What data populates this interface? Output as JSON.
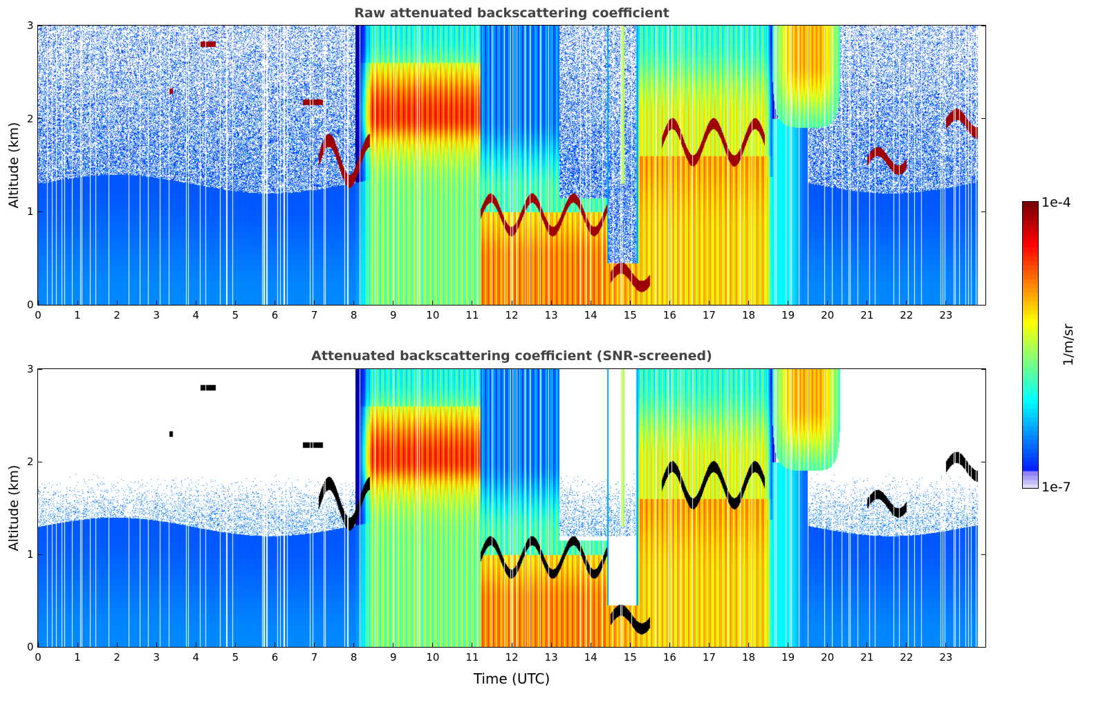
{
  "chart_data": [
    {
      "type": "heatmap",
      "title": "Raw attenuated backscattering coefficient",
      "xlabel": "",
      "ylabel": "Altitude (km)",
      "xlim": [
        0,
        24
      ],
      "ylim": [
        0,
        3
      ],
      "x_ticks": [
        "0",
        "1",
        "2",
        "3",
        "4",
        "5",
        "6",
        "7",
        "8",
        "9",
        "10",
        "11",
        "12",
        "13",
        "14",
        "15",
        "16",
        "17",
        "18",
        "19",
        "20",
        "21",
        "22",
        "23"
      ],
      "y_ticks": [
        "0",
        "1",
        "2",
        "3"
      ],
      "screened": false,
      "features": [
        {
          "desc": "boundary layer",
          "x_range": [
            0,
            24
          ],
          "top_altitude_km": 1.3
        },
        {
          "desc": "cloud layer",
          "x_range": [
            7.1,
            8.4
          ],
          "altitude_km": 1.6
        },
        {
          "desc": "cloud layer",
          "x_range": [
            11.2,
            14.4
          ],
          "altitude_km": 0.95
        },
        {
          "desc": "cloud layer",
          "x_range": [
            15.2,
            18.5
          ],
          "altitude_km": 1.7
        },
        {
          "desc": "cloud layer",
          "x_range": [
            23.0,
            23.8
          ],
          "altitude_km": 1.95
        }
      ]
    },
    {
      "type": "heatmap",
      "title": "Attenuated backscattering coefficient (SNR-screened)",
      "xlabel": "Time (UTC)",
      "ylabel": "Altitude (km)",
      "xlim": [
        0,
        24
      ],
      "ylim": [
        0,
        3
      ],
      "x_ticks": [
        "0",
        "1",
        "2",
        "3",
        "4",
        "5",
        "6",
        "7",
        "8",
        "9",
        "10",
        "11",
        "12",
        "13",
        "14",
        "15",
        "16",
        "17",
        "18",
        "19",
        "20",
        "21",
        "22",
        "23"
      ],
      "y_ticks": [
        "0",
        "1",
        "2",
        "3"
      ],
      "screened": true
    }
  ],
  "colorbar": {
    "label": "1/m/sr",
    "min_label": "1e-7",
    "max_label": "1e-4",
    "colormap": "jet"
  }
}
